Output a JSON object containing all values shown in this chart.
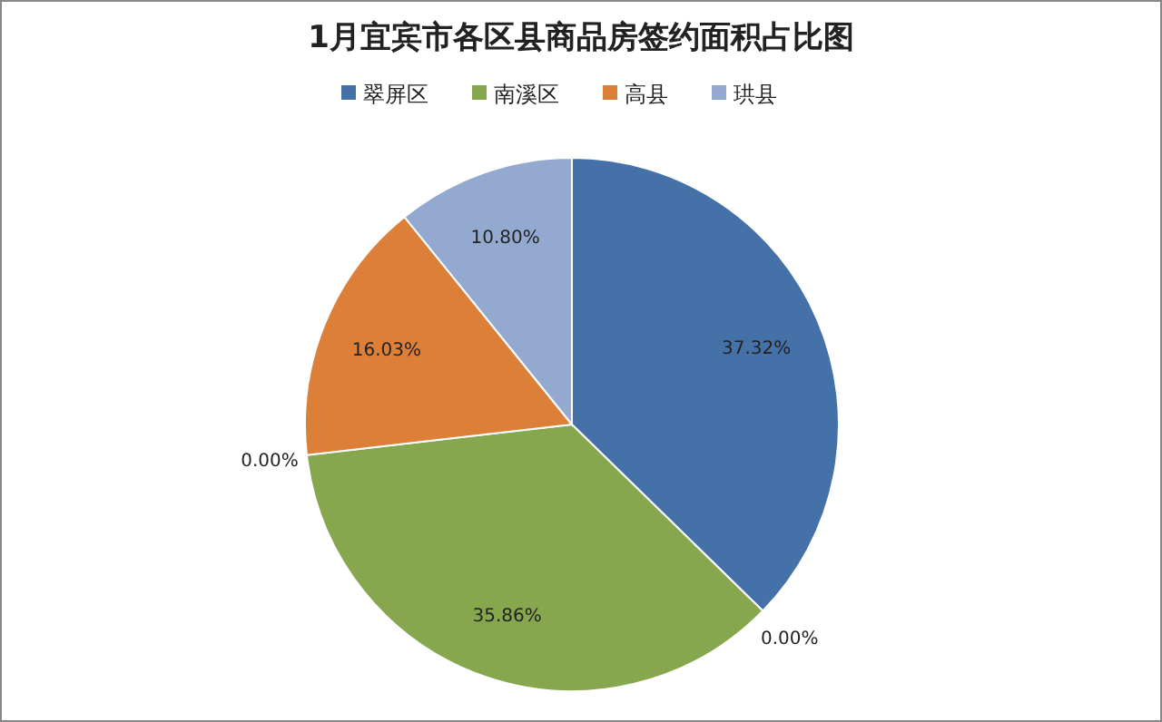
{
  "chart_data": {
    "type": "pie",
    "title": "1月宜宾市各区县商品房签约面积占比图",
    "categories": [
      "翠屏区",
      null,
      "南溪区",
      null,
      "高县",
      "珙县"
    ],
    "values": [
      37.32,
      0.0,
      35.86,
      0.0,
      16.03,
      10.8
    ],
    "value_labels": [
      "37.32%",
      "0.00%",
      "35.86%",
      "0.00%",
      "16.03%",
      "10.80%"
    ],
    "colors": [
      "#4472a8",
      "#c0504d",
      "#87a74e",
      "#7f6a9f",
      "#dc8039",
      "#94a9d0"
    ],
    "legend": "top"
  }
}
